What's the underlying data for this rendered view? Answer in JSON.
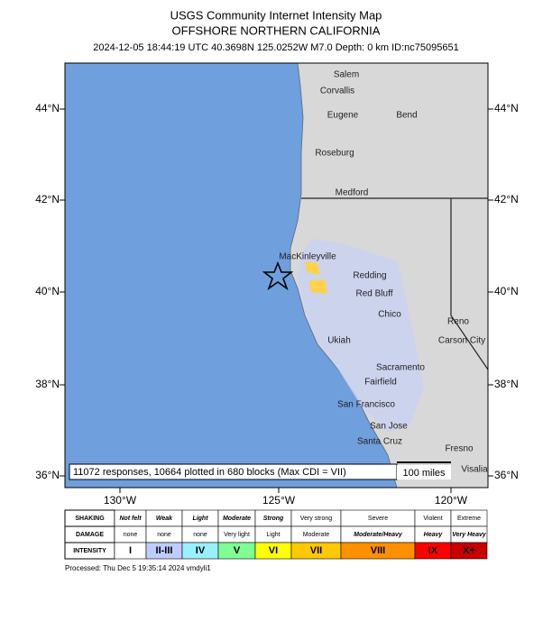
{
  "header": {
    "title": "USGS Community Internet Intensity Map",
    "subtitle": "OFFSHORE NORTHERN CALIFORNIA",
    "details": "2024-12-05 18:44:19 UTC 40.3698N 125.0252W M7.0 Depth: 0 km ID:nc75095651"
  },
  "map": {
    "lat_labels": [
      "44°N",
      "42°N",
      "40°N",
      "38°N",
      "36°N"
    ],
    "lon_labels": [
      "130°W",
      "125°W",
      "120°W"
    ],
    "cities": [
      "Salem",
      "Corvallis",
      "Eugene",
      "Bend",
      "Roseburg",
      "Medford",
      "MacKinleyville",
      "Redding",
      "Red Bluff",
      "Chico",
      "Reno",
      "Carson City",
      "Ukiah",
      "Sacramento",
      "Fairfield",
      "San Francisco",
      "San Jose",
      "Santa Cruz",
      "Fresno",
      "Visalia"
    ],
    "info": "11072 responses, 10664 plotted in 680 blocks (Max CDI = VII)",
    "scale": "100 miles"
  },
  "legend": {
    "headers": [
      "SHAKING",
      "DAMAGE",
      "INTENSITY"
    ],
    "columns": [
      {
        "shaking": "Not felt",
        "damage": "none",
        "intensity": "I",
        "color": "#ffffff"
      },
      {
        "shaking": "Weak",
        "damage": "none",
        "intensity": "II-III",
        "color": "#bfccff"
      },
      {
        "shaking": "Light",
        "damage": "none",
        "intensity": "IV",
        "color": "#99f0ff"
      },
      {
        "shaking": "Moderate",
        "damage": "Very light",
        "intensity": "V",
        "color": "#7fff93"
      },
      {
        "shaking": "Strong",
        "damage": "Light",
        "intensity": "VI",
        "color": "#ffff00"
      },
      {
        "shaking": "Very strong",
        "damage": "Moderate",
        "intensity": "VII",
        "color": "#ffc800"
      },
      {
        "shaking": "Severe",
        "damage": "Moderate/Heavy",
        "intensity": "VIII",
        "color": "#ff9100"
      },
      {
        "shaking": "Violent",
        "damage": "Heavy",
        "intensity": "IX",
        "color": "#ff0000"
      },
      {
        "shaking": "Extreme",
        "damage": "Very Heavy",
        "intensity": "X+",
        "color": "#c80000"
      }
    ]
  },
  "footer": "Processed: Thu Dec  5 19:35:14 2024 vmdyli1"
}
